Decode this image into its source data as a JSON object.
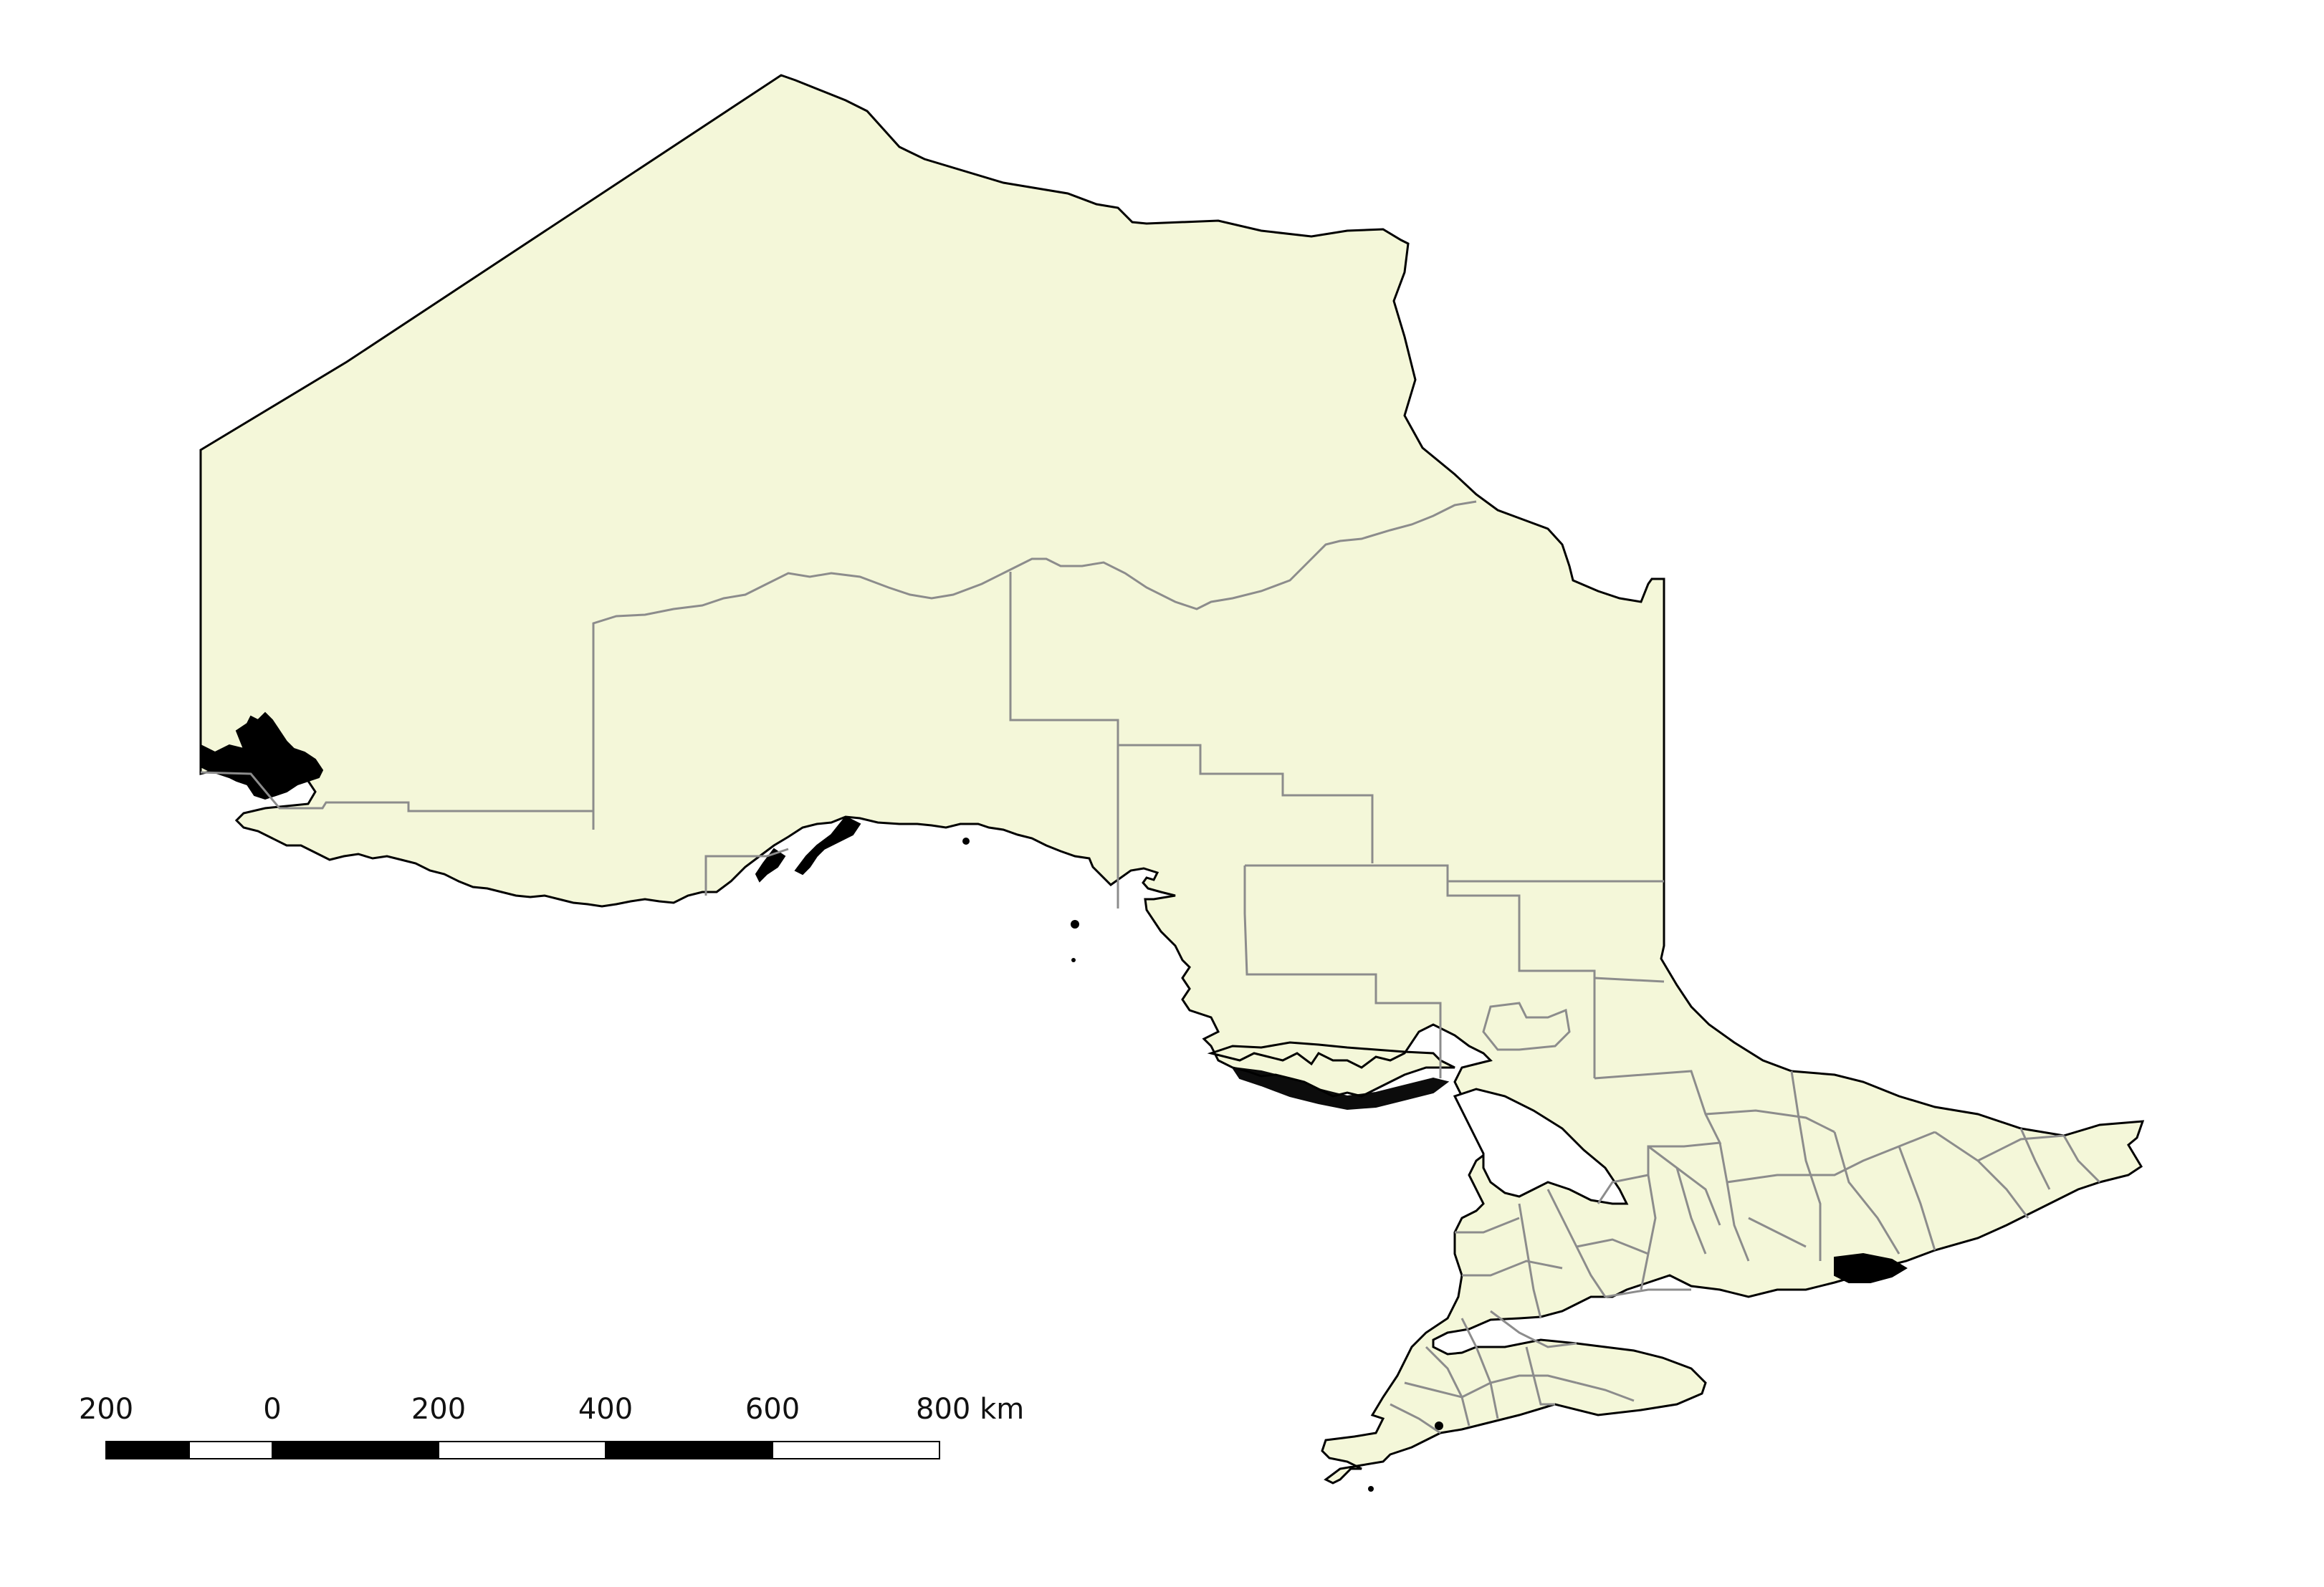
{
  "map": {
    "land_fill": "#f4f7d9",
    "coast_color": "#000000",
    "district_border_color": "#8c8c8c",
    "background": "#ffffff"
  },
  "scale_bar": {
    "labels": [
      "200",
      "0",
      "200",
      "400",
      "600",
      "800 km"
    ],
    "bar_color_dark": "#000000",
    "bar_color_light": "#ffffff"
  }
}
